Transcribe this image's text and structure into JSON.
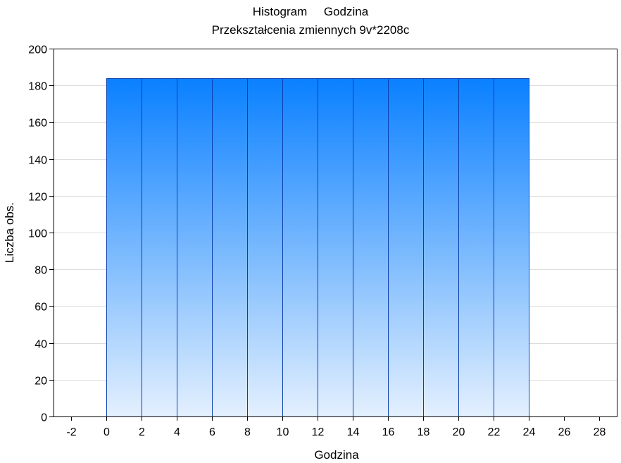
{
  "chart_data": {
    "type": "bar",
    "title": "Histogram     Godzina",
    "subtitle": "Przekształcenia zmiennych 9v*2208c",
    "xlabel": "Godzina",
    "ylabel": "Liczba obs.",
    "xlim": [
      -3,
      29
    ],
    "ylim": [
      0,
      200
    ],
    "x_ticks": [
      -2,
      0,
      2,
      4,
      6,
      8,
      10,
      12,
      14,
      16,
      18,
      20,
      22,
      24,
      26,
      28
    ],
    "y_ticks": [
      0,
      20,
      40,
      60,
      80,
      100,
      120,
      140,
      160,
      180,
      200
    ],
    "grid": "horizontal",
    "bin_width": 2,
    "bins": [
      {
        "start": 0,
        "end": 2,
        "count": 184
      },
      {
        "start": 2,
        "end": 4,
        "count": 184
      },
      {
        "start": 4,
        "end": 6,
        "count": 184
      },
      {
        "start": 6,
        "end": 8,
        "count": 184
      },
      {
        "start": 8,
        "end": 10,
        "count": 184
      },
      {
        "start": 10,
        "end": 12,
        "count": 184
      },
      {
        "start": 12,
        "end": 14,
        "count": 184
      },
      {
        "start": 14,
        "end": 16,
        "count": 184
      },
      {
        "start": 16,
        "end": 18,
        "count": 184
      },
      {
        "start": 18,
        "end": 20,
        "count": 184
      },
      {
        "start": 20,
        "end": 22,
        "count": 184
      },
      {
        "start": 22,
        "end": 24,
        "count": 184
      }
    ],
    "colors": {
      "bar_top": "#0a80ff",
      "bar_bottom": "#e4f0fe",
      "bar_edge": "#0b3fb0",
      "grid": "#dcdcdc",
      "frame": "#000000"
    }
  }
}
